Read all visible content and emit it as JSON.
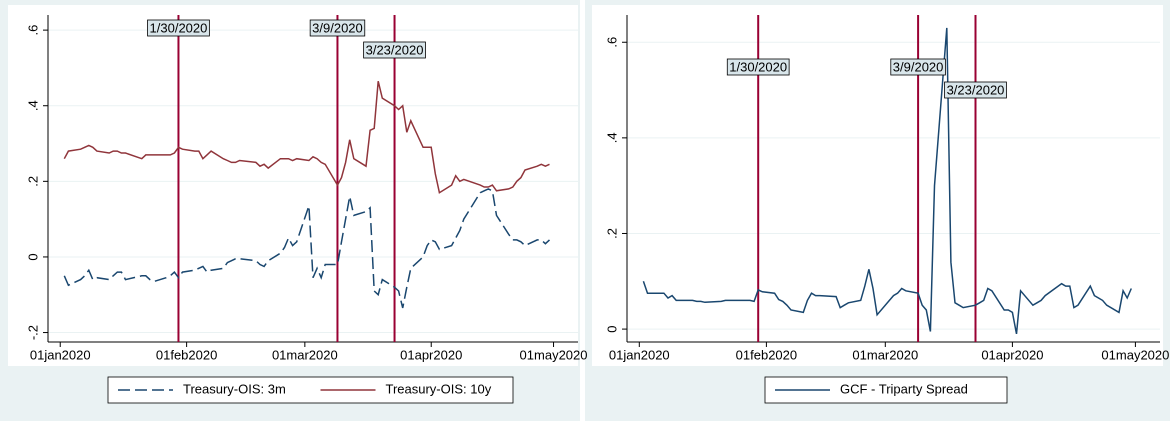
{
  "chart_data": [
    {
      "type": "line",
      "x": [
        "2020-01-02",
        "2020-01-03",
        "2020-01-06",
        "2020-01-07",
        "2020-01-08",
        "2020-01-09",
        "2020-01-10",
        "2020-01-13",
        "2020-01-14",
        "2020-01-15",
        "2020-01-16",
        "2020-01-17",
        "2020-01-21",
        "2020-01-22",
        "2020-01-23",
        "2020-01-24",
        "2020-01-27",
        "2020-01-28",
        "2020-01-29",
        "2020-01-30",
        "2020-01-31",
        "2020-02-03",
        "2020-02-04",
        "2020-02-05",
        "2020-02-06",
        "2020-02-07",
        "2020-02-10",
        "2020-02-11",
        "2020-02-12",
        "2020-02-13",
        "2020-02-14",
        "2020-02-18",
        "2020-02-19",
        "2020-02-20",
        "2020-02-21",
        "2020-02-24",
        "2020-02-25",
        "2020-02-26",
        "2020-02-27",
        "2020-02-28",
        "2020-03-02",
        "2020-03-03",
        "2020-03-04",
        "2020-03-05",
        "2020-03-06",
        "2020-03-09",
        "2020-03-10",
        "2020-03-11",
        "2020-03-12",
        "2020-03-13",
        "2020-03-16",
        "2020-03-17",
        "2020-03-18",
        "2020-03-19",
        "2020-03-20",
        "2020-03-23",
        "2020-03-24",
        "2020-03-25",
        "2020-03-26",
        "2020-03-27",
        "2020-03-30",
        "2020-03-31",
        "2020-04-01",
        "2020-04-02",
        "2020-04-03",
        "2020-04-06",
        "2020-04-07",
        "2020-04-08",
        "2020-04-09",
        "2020-04-13",
        "2020-04-14",
        "2020-04-15",
        "2020-04-16",
        "2020-04-17",
        "2020-04-20",
        "2020-04-21",
        "2020-04-22",
        "2020-04-23",
        "2020-04-24",
        "2020-04-27",
        "2020-04-28",
        "2020-04-29",
        "2020-04-30"
      ],
      "series": [
        {
          "name": "Treasury-OIS: 3m",
          "color": "#1a476f",
          "linestyle": "dashed",
          "values": [
            -0.05,
            -0.075,
            -0.06,
            -0.05,
            -0.035,
            -0.06,
            -0.055,
            -0.06,
            -0.05,
            -0.04,
            -0.04,
            -0.06,
            -0.05,
            -0.05,
            -0.06,
            -0.065,
            -0.055,
            -0.05,
            -0.04,
            -0.055,
            -0.04,
            -0.035,
            -0.03,
            -0.025,
            -0.04,
            -0.035,
            -0.03,
            -0.015,
            -0.01,
            -0.005,
            -0.005,
            -0.01,
            -0.02,
            -0.025,
            -0.01,
            0.01,
            0.025,
            0.05,
            0.03,
            0.04,
            0.135,
            -0.055,
            -0.03,
            -0.055,
            -0.02,
            -0.02,
            0.04,
            0.1,
            0.16,
            0.11,
            0.12,
            0.13,
            -0.09,
            -0.1,
            -0.06,
            -0.08,
            -0.09,
            -0.135,
            -0.08,
            -0.03,
            0,
            0.03,
            0.045,
            0.04,
            0.02,
            0.03,
            0.05,
            0.07,
            0.1,
            0.17,
            0.175,
            0.18,
            0.175,
            0.11,
            0.06,
            0.045,
            0.045,
            0.04,
            0.03,
            0.045,
            0.045,
            0.035,
            0.045
          ]
        },
        {
          "name": "Treasury-OIS: 10y",
          "color": "#90353b",
          "linestyle": "solid",
          "values": [
            0.26,
            0.28,
            0.285,
            0.29,
            0.295,
            0.29,
            0.28,
            0.275,
            0.28,
            0.28,
            0.275,
            0.275,
            0.26,
            0.27,
            0.27,
            0.27,
            0.27,
            0.27,
            0.275,
            0.29,
            0.285,
            0.28,
            0.28,
            0.26,
            0.27,
            0.28,
            0.26,
            0.255,
            0.25,
            0.25,
            0.255,
            0.25,
            0.24,
            0.245,
            0.235,
            0.26,
            0.26,
            0.26,
            0.255,
            0.26,
            0.255,
            0.265,
            0.26,
            0.25,
            0.245,
            0.19,
            0.21,
            0.25,
            0.31,
            0.26,
            0.24,
            0.335,
            0.34,
            0.465,
            0.42,
            0.4,
            0.39,
            0.4,
            0.33,
            0.36,
            0.29,
            0.29,
            0.29,
            0.22,
            0.17,
            0.19,
            0.215,
            0.2,
            0.205,
            0.19,
            0.185,
            0.185,
            0.19,
            0.175,
            0.18,
            0.185,
            0.2,
            0.21,
            0.23,
            0.24,
            0.245,
            0.24,
            0.245
          ]
        }
      ],
      "xlim": [
        "2019-12-29",
        "2020-05-07"
      ],
      "xticks": [
        {
          "value": "2020-01-01",
          "label": "01jan2020"
        },
        {
          "value": "2020-02-01",
          "label": "01feb2020"
        },
        {
          "value": "2020-03-01",
          "label": "01mar2020"
        },
        {
          "value": "2020-04-01",
          "label": "01apr2020"
        },
        {
          "value": "2020-05-01",
          "label": "01may2020"
        }
      ],
      "ylim": [
        -0.225,
        0.64
      ],
      "yticks": [
        {
          "value": -0.2,
          "label": "-.2"
        },
        0,
        {
          "value": 0.2,
          "label": ".2"
        },
        {
          "value": 0.4,
          "label": ".4"
        },
        {
          "value": 0.6,
          "label": ".6"
        }
      ],
      "events": [
        {
          "x": "2020-01-30",
          "label": "1/30/2020"
        },
        {
          "x": "2020-03-09",
          "label": "3/9/2020"
        },
        {
          "x": "2020-03-23",
          "label": "3/23/2020"
        }
      ],
      "event_color": "#990033",
      "grid": true,
      "legend": "bottom"
    },
    {
      "type": "line",
      "x": [
        "2020-01-02",
        "2020-01-03",
        "2020-01-06",
        "2020-01-07",
        "2020-01-08",
        "2020-01-09",
        "2020-01-10",
        "2020-01-13",
        "2020-01-14",
        "2020-01-15",
        "2020-01-16",
        "2020-01-17",
        "2020-01-21",
        "2020-01-22",
        "2020-01-23",
        "2020-01-24",
        "2020-01-27",
        "2020-01-28",
        "2020-01-29",
        "2020-01-30",
        "2020-01-31",
        "2020-02-03",
        "2020-02-04",
        "2020-02-05",
        "2020-02-06",
        "2020-02-07",
        "2020-02-10",
        "2020-02-11",
        "2020-02-12",
        "2020-02-13",
        "2020-02-14",
        "2020-02-18",
        "2020-02-19",
        "2020-02-20",
        "2020-02-21",
        "2020-02-24",
        "2020-02-25",
        "2020-02-26",
        "2020-02-27",
        "2020-02-28",
        "2020-03-02",
        "2020-03-03",
        "2020-03-04",
        "2020-03-05",
        "2020-03-06",
        "2020-03-09",
        "2020-03-10",
        "2020-03-11",
        "2020-03-12",
        "2020-03-13",
        "2020-03-16",
        "2020-03-17",
        "2020-03-18",
        "2020-03-19",
        "2020-03-20",
        "2020-03-23",
        "2020-03-24",
        "2020-03-25",
        "2020-03-26",
        "2020-03-27",
        "2020-03-30",
        "2020-03-31",
        "2020-04-01",
        "2020-04-02",
        "2020-04-03",
        "2020-04-06",
        "2020-04-07",
        "2020-04-08",
        "2020-04-09",
        "2020-04-13",
        "2020-04-14",
        "2020-04-15",
        "2020-04-16",
        "2020-04-17",
        "2020-04-20",
        "2020-04-21",
        "2020-04-22",
        "2020-04-23",
        "2020-04-24",
        "2020-04-27",
        "2020-04-28",
        "2020-04-29",
        "2020-04-30"
      ],
      "series": [
        {
          "name": "GCF - Triparty Spread",
          "color": "#1a476f",
          "linestyle": "solid",
          "values": [
            0.1,
            0.075,
            0.075,
            0.075,
            0.065,
            0.07,
            0.06,
            0.06,
            0.06,
            0.058,
            0.058,
            0.056,
            0.058,
            0.06,
            0.06,
            0.06,
            0.06,
            0.06,
            0.058,
            0.082,
            0.078,
            0.075,
            0.062,
            0.058,
            0.05,
            0.04,
            0.035,
            0.06,
            0.075,
            0.07,
            0.07,
            0.068,
            0.045,
            0.05,
            0.055,
            0.06,
            0.09,
            0.125,
            0.085,
            0.03,
            0.06,
            0.07,
            0.075,
            0.085,
            0.08,
            0.075,
            0.05,
            0.04,
            -0.005,
            0.3,
            0.63,
            0.14,
            0.055,
            0.05,
            0.045,
            0.05,
            0.055,
            0.06,
            0.085,
            0.08,
            0.04,
            0.04,
            0.035,
            -0.01,
            0.08,
            0.05,
            0.055,
            0.06,
            0.07,
            0.095,
            0.09,
            0.09,
            0.045,
            0.05,
            0.09,
            0.07,
            0.065,
            0.06,
            0.05,
            0.035,
            0.08,
            0.065,
            0.085
          ]
        }
      ],
      "xlim": [
        "2019-12-29",
        "2020-05-07"
      ],
      "xticks": [
        {
          "value": "2020-01-01",
          "label": "01jan2020"
        },
        {
          "value": "2020-02-01",
          "label": "01feb2020"
        },
        {
          "value": "2020-03-01",
          "label": "01mar2020"
        },
        {
          "value": "2020-04-01",
          "label": "01apr2020"
        },
        {
          "value": "2020-05-01",
          "label": "01may2020"
        }
      ],
      "ylim": [
        -0.027,
        0.657
      ],
      "yticks": [
        0,
        {
          "value": 0.2,
          "label": ".2"
        },
        {
          "value": 0.4,
          "label": ".4"
        },
        {
          "value": 0.6,
          "label": ".6"
        }
      ],
      "events": [
        {
          "x": "2020-01-30",
          "label": "1/30/2020"
        },
        {
          "x": "2020-03-09",
          "label": "3/9/2020"
        },
        {
          "x": "2020-03-23",
          "label": "3/23/2020"
        }
      ],
      "event_color": "#990033",
      "grid": true,
      "legend": "bottom"
    }
  ]
}
